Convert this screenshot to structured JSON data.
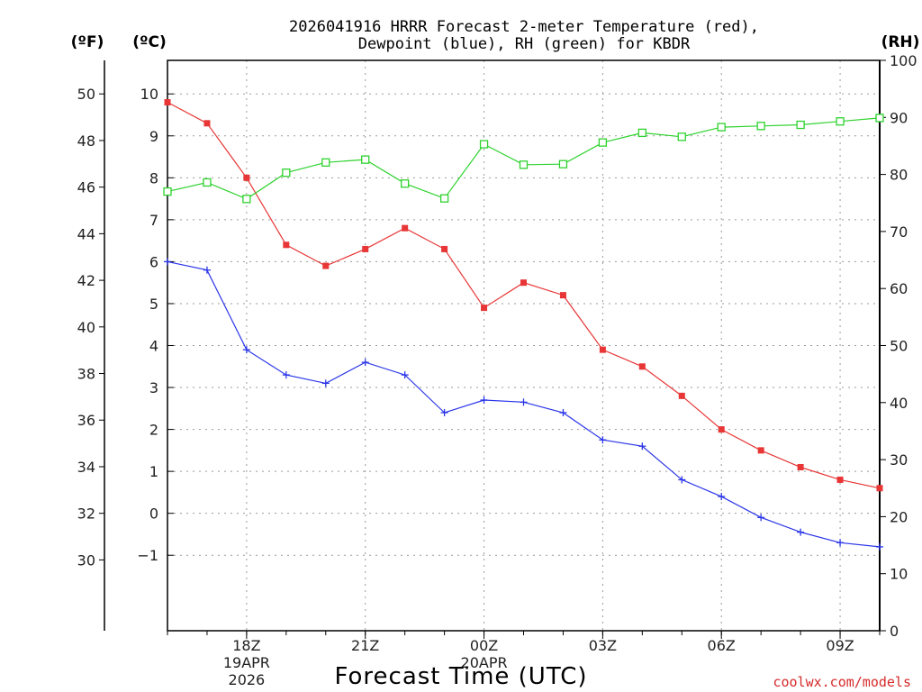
{
  "chart_data": {
    "type": "line",
    "title_line1": "2026041916 HRRR Forecast 2-meter Temperature (red),",
    "title_line2": "Dewpoint (blue), RH (green) for KBDR",
    "xlabel": "Forecast Time (UTC)",
    "credit": "coolwx.com/models",
    "left_unit_f": "(ºF)",
    "left_unit_c": "(ºC)",
    "right_unit": "(RH)",
    "x_hours": [
      16,
      17,
      18,
      19,
      20,
      21,
      22,
      23,
      24,
      25,
      26,
      27,
      28,
      29,
      30,
      31,
      32,
      33,
      34
    ],
    "xlim": [
      16,
      34
    ],
    "x_ticks": [
      {
        "hour": 18,
        "label": "18Z",
        "date1": "19APR",
        "date2": "2026"
      },
      {
        "hour": 21,
        "label": "21Z"
      },
      {
        "hour": 24,
        "label": "00Z",
        "date1": "20APR"
      },
      {
        "hour": 27,
        "label": "03Z"
      },
      {
        "hour": 30,
        "label": "06Z"
      },
      {
        "hour": 33,
        "label": "09Z"
      }
    ],
    "ylim_c": [
      -2.8,
      10.8
    ],
    "yticks_c": [
      -1,
      0,
      1,
      2,
      3,
      4,
      5,
      6,
      7,
      8,
      9,
      10
    ],
    "yticks_c_labels": [
      "−1",
      "0",
      "1",
      "2",
      "3",
      "4",
      "5",
      "6",
      "7",
      "8",
      "9",
      "10"
    ],
    "yticks_f": [
      30,
      32,
      34,
      36,
      38,
      40,
      42,
      44,
      46,
      48,
      50
    ],
    "ylim_rh": [
      0,
      100
    ],
    "yticks_rh": [
      0,
      10,
      20,
      30,
      40,
      50,
      60,
      70,
      80,
      90,
      100
    ],
    "series": [
      {
        "name": "Temperature",
        "unit": "C",
        "color": "#e83535",
        "marker": "filled-square",
        "values": [
          9.8,
          9.3,
          8.0,
          6.4,
          5.9,
          6.3,
          6.8,
          6.3,
          4.9,
          5.5,
          5.2,
          3.9,
          3.5,
          2.8,
          2.0,
          1.5,
          1.1,
          0.8,
          0.6
        ]
      },
      {
        "name": "Dewpoint",
        "unit": "C",
        "color": "#2a35e8",
        "marker": "plus",
        "values": [
          6.0,
          5.8,
          3.9,
          3.3,
          3.1,
          3.6,
          3.3,
          2.4,
          2.7,
          2.65,
          2.4,
          1.75,
          1.6,
          0.8,
          0.4,
          -0.1,
          -0.45,
          -0.7,
          -0.8
        ]
      },
      {
        "name": "RH",
        "unit": "%",
        "color": "#2ed22e",
        "marker": "open-square",
        "values": [
          77,
          78.6,
          75.7,
          80.3,
          82.1,
          82.6,
          78.4,
          75.8,
          85.3,
          81.7,
          81.8,
          85.6,
          87.3,
          86.6,
          88.3,
          88.5,
          88.7,
          89.3,
          89.9
        ]
      }
    ]
  }
}
